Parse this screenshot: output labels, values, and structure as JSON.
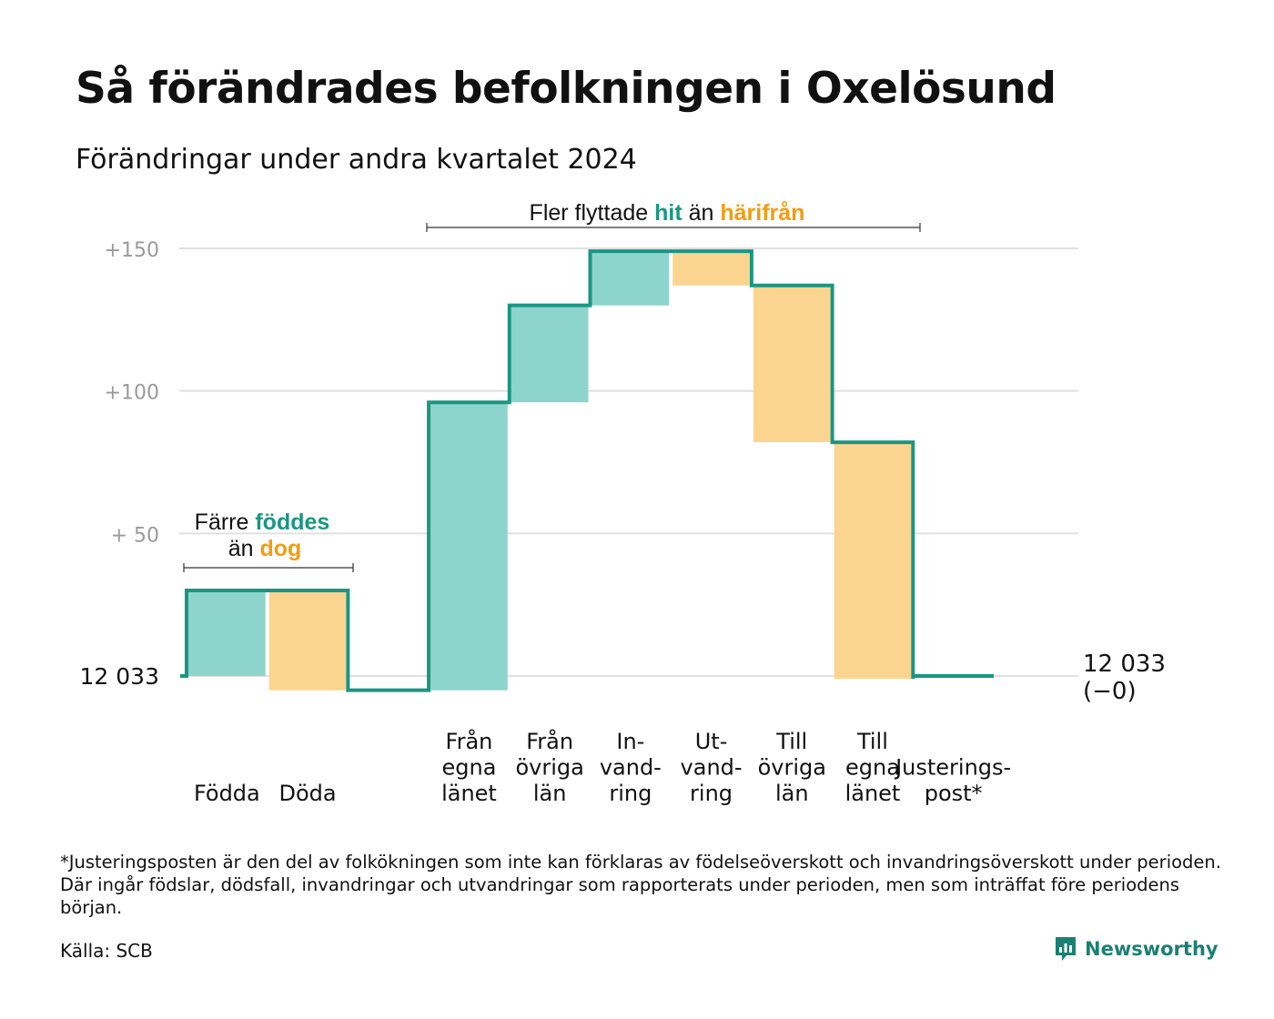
{
  "header": {
    "title": "Så förändrades befolkningen i Oxelösund",
    "subtitle": "Förändringar under andra kvartalet 2024"
  },
  "colors": {
    "increase": "#8dd5cc",
    "decrease": "#fbd58f",
    "line": "#1a9683",
    "hit_text": "#1a9683",
    "harifran_text": "#f39c12",
    "grid": "#e0e0e0",
    "axis_label": "#9a9a9a"
  },
  "chart_data": {
    "type": "waterfall",
    "baseline": "12 033",
    "end_value": "12 033",
    "end_change": "(−0)",
    "ylim": [
      -5,
      150
    ],
    "yticks": [
      {
        "value": 150,
        "label": "+150"
      },
      {
        "value": 100,
        "label": "+100"
      },
      {
        "value": 50,
        "label": "+  50"
      },
      {
        "value": 0,
        "label": "12  033"
      }
    ],
    "steps": [
      {
        "label": [
          "Födda"
        ],
        "value": 30,
        "start": 0,
        "end": 30,
        "kind": "increase"
      },
      {
        "label": [
          "Döda"
        ],
        "value": -35,
        "start": 30,
        "end": -5,
        "kind": "decrease"
      },
      {
        "label": [],
        "value": 0,
        "start": -5,
        "end": -5,
        "kind": "none"
      },
      {
        "label": [
          "Från",
          "egna",
          "länet"
        ],
        "value": 101,
        "start": -5,
        "end": 96,
        "kind": "increase"
      },
      {
        "label": [
          "Från",
          "övriga",
          "län"
        ],
        "value": 34,
        "start": 96,
        "end": 130,
        "kind": "increase"
      },
      {
        "label": [
          "In-",
          "vand-",
          "ring"
        ],
        "value": 19,
        "start": 130,
        "end": 149,
        "kind": "increase"
      },
      {
        "label": [
          "Ut-",
          "vand-",
          "ring"
        ],
        "value": -12,
        "start": 149,
        "end": 137,
        "kind": "decrease"
      },
      {
        "label": [
          "Till",
          "övriga",
          "län"
        ],
        "value": -55,
        "start": 137,
        "end": 82,
        "kind": "decrease"
      },
      {
        "label": [
          "Till",
          "egna",
          "länet"
        ],
        "value": -83,
        "start": 82,
        "end": -1,
        "kind": "decrease"
      },
      {
        "label": [
          "Justerings-",
          "post*"
        ],
        "value": 1,
        "start": -1,
        "end": 0,
        "kind": "adjust"
      }
    ],
    "annotations": {
      "natural": {
        "line1_prefix": "Färre ",
        "line1_highlight": "föddes",
        "line2_prefix": "än ",
        "line2_highlight": "dog"
      },
      "migration": {
        "prefix": "Fler flyttade ",
        "highlight1": "hit",
        "middle": " än ",
        "highlight2": "härifrån"
      }
    }
  },
  "footer": {
    "footnote": "*Justeringsposten är den del av folkökningen som inte kan förklaras av födelseöverskott och invandringsöverskott under perioden. Där ingår födslar, dödsfall, invandringar och utvandringar som rapporterats under perioden, men som inträffat före periodens början.",
    "source": "Källa: SCB",
    "brand": "Newsworthy",
    "brand_icon": "newsworthy-logo-icon"
  }
}
